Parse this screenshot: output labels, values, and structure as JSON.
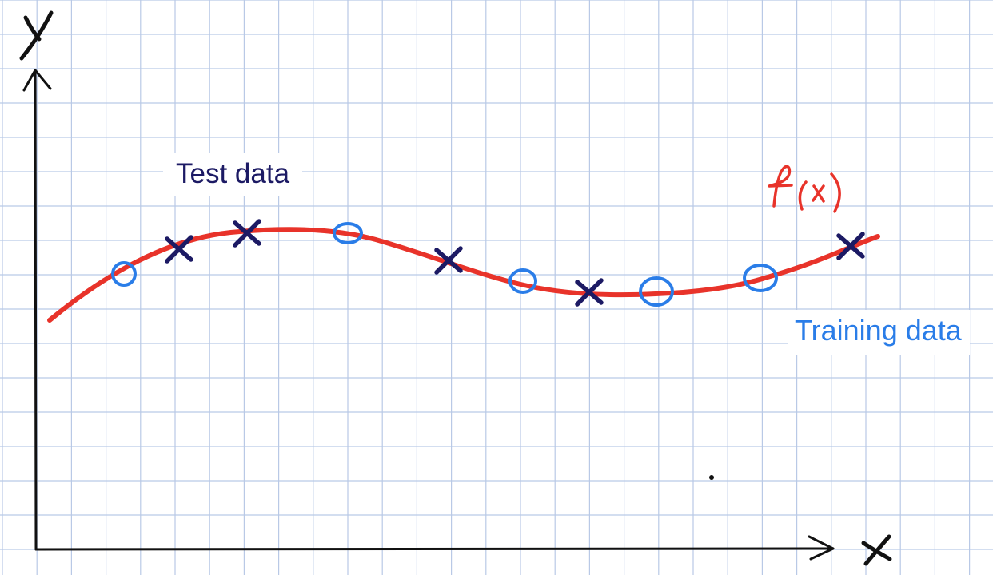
{
  "diagram": {
    "axis_x_label": "X",
    "axis_y_label": "Y",
    "function_label": "f(x)",
    "legend": {
      "test": "Test data",
      "training": "Training data"
    },
    "colors": {
      "grid": "#b9c9e6",
      "axis": "#111111",
      "curve": "#e8332a",
      "test": "#1c1a64",
      "training": "#2a7de8"
    },
    "markers": {
      "test_symbol": "cross",
      "training_symbol": "circle"
    }
  }
}
